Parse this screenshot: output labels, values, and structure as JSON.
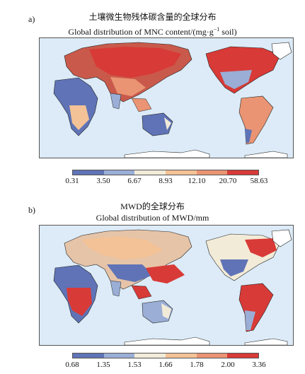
{
  "maps": [
    {
      "panel_label": "a)",
      "title_cn": "土壤微生物残体碳含量的全球分布",
      "title_en_main": "Global distribution of MNC content/(mg·g",
      "title_en_sup": "−1",
      "title_en_tail": " soil)",
      "legend_ticks": [
        "0.31",
        "3.50",
        "6.67",
        "8.93",
        "12.10",
        "20.70",
        "58.63"
      ],
      "legend_colors": [
        "#5f73b6",
        "#9aaed6",
        "#f2ebd8",
        "#f3c296",
        "#ea9473",
        "#d83a37"
      ]
    },
    {
      "panel_label": "b)",
      "title_cn": "MWD的全球分布",
      "title_en_main": "Global distribution of MWD/mm",
      "legend_ticks": [
        "0.68",
        "1.35",
        "1.53",
        "1.66",
        "1.78",
        "2.00",
        "3.36"
      ],
      "legend_colors": [
        "#5f73b6",
        "#9aaed6",
        "#f2ebd8",
        "#f3c296",
        "#ea9473",
        "#d83a37"
      ]
    }
  ]
}
